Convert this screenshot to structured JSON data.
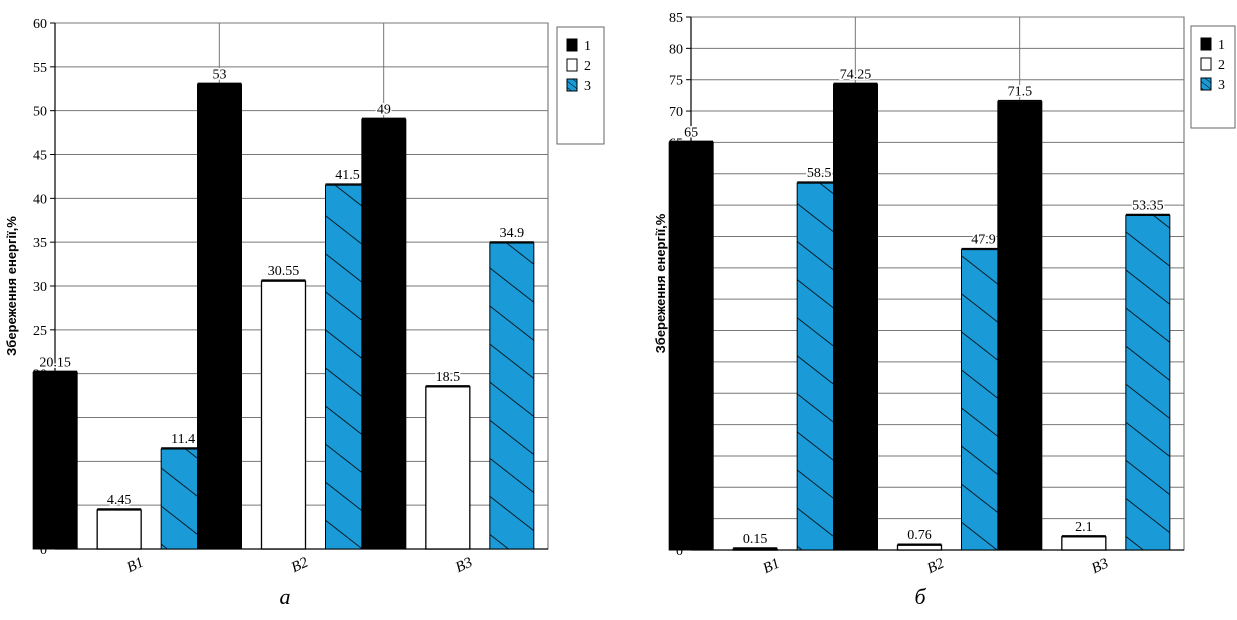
{
  "chart_data": [
    {
      "type": "bar",
      "panel_label": "а",
      "ylabel": "Збереження енергії,%",
      "xlabel": "",
      "categories": [
        "B1",
        "B2",
        "B3"
      ],
      "ylim": [
        0,
        60
      ],
      "ytick_step": 5,
      "grid": true,
      "legend_placement": "top-right",
      "series": [
        {
          "name": "1",
          "values": [
            20.15,
            53,
            49
          ],
          "data_labels": [
            "20.15",
            "53",
            "49"
          ],
          "color": "#000000",
          "pattern": "solid"
        },
        {
          "name": "2",
          "values": [
            4.45,
            30.55,
            18.5
          ],
          "data_labels": [
            "4.45",
            "30.55",
            "18.5"
          ],
          "color": "#ffffff",
          "pattern": "empty"
        },
        {
          "name": "3",
          "values": [
            11.4,
            41.5,
            34.9
          ],
          "data_labels": [
            "11.4",
            "41.5",
            "34.9"
          ],
          "color": "#1a9ad6",
          "pattern": "hatched"
        }
      ]
    },
    {
      "type": "bar",
      "panel_label": "б",
      "ylabel": "Збереження енергії,%",
      "xlabel": "",
      "categories": [
        "B1",
        "B2",
        "B3"
      ],
      "ylim": [
        0,
        85
      ],
      "ytick_step": 5,
      "grid": true,
      "legend_placement": "top-right",
      "series": [
        {
          "name": "1",
          "values": [
            65,
            74.25,
            71.5
          ],
          "data_labels": [
            "65",
            "74.25",
            "71.5"
          ],
          "color": "#000000",
          "pattern": "solid"
        },
        {
          "name": "2",
          "values": [
            0.15,
            0.76,
            2.1
          ],
          "data_labels": [
            "0.15",
            "0.76",
            "2.1"
          ],
          "color": "#ffffff",
          "pattern": "empty"
        },
        {
          "name": "3",
          "values": [
            58.5,
            47.9,
            53.35
          ],
          "data_labels": [
            "58.5",
            "47.9",
            "53.35"
          ],
          "color": "#1a9ad6",
          "pattern": "hatched"
        }
      ]
    }
  ]
}
